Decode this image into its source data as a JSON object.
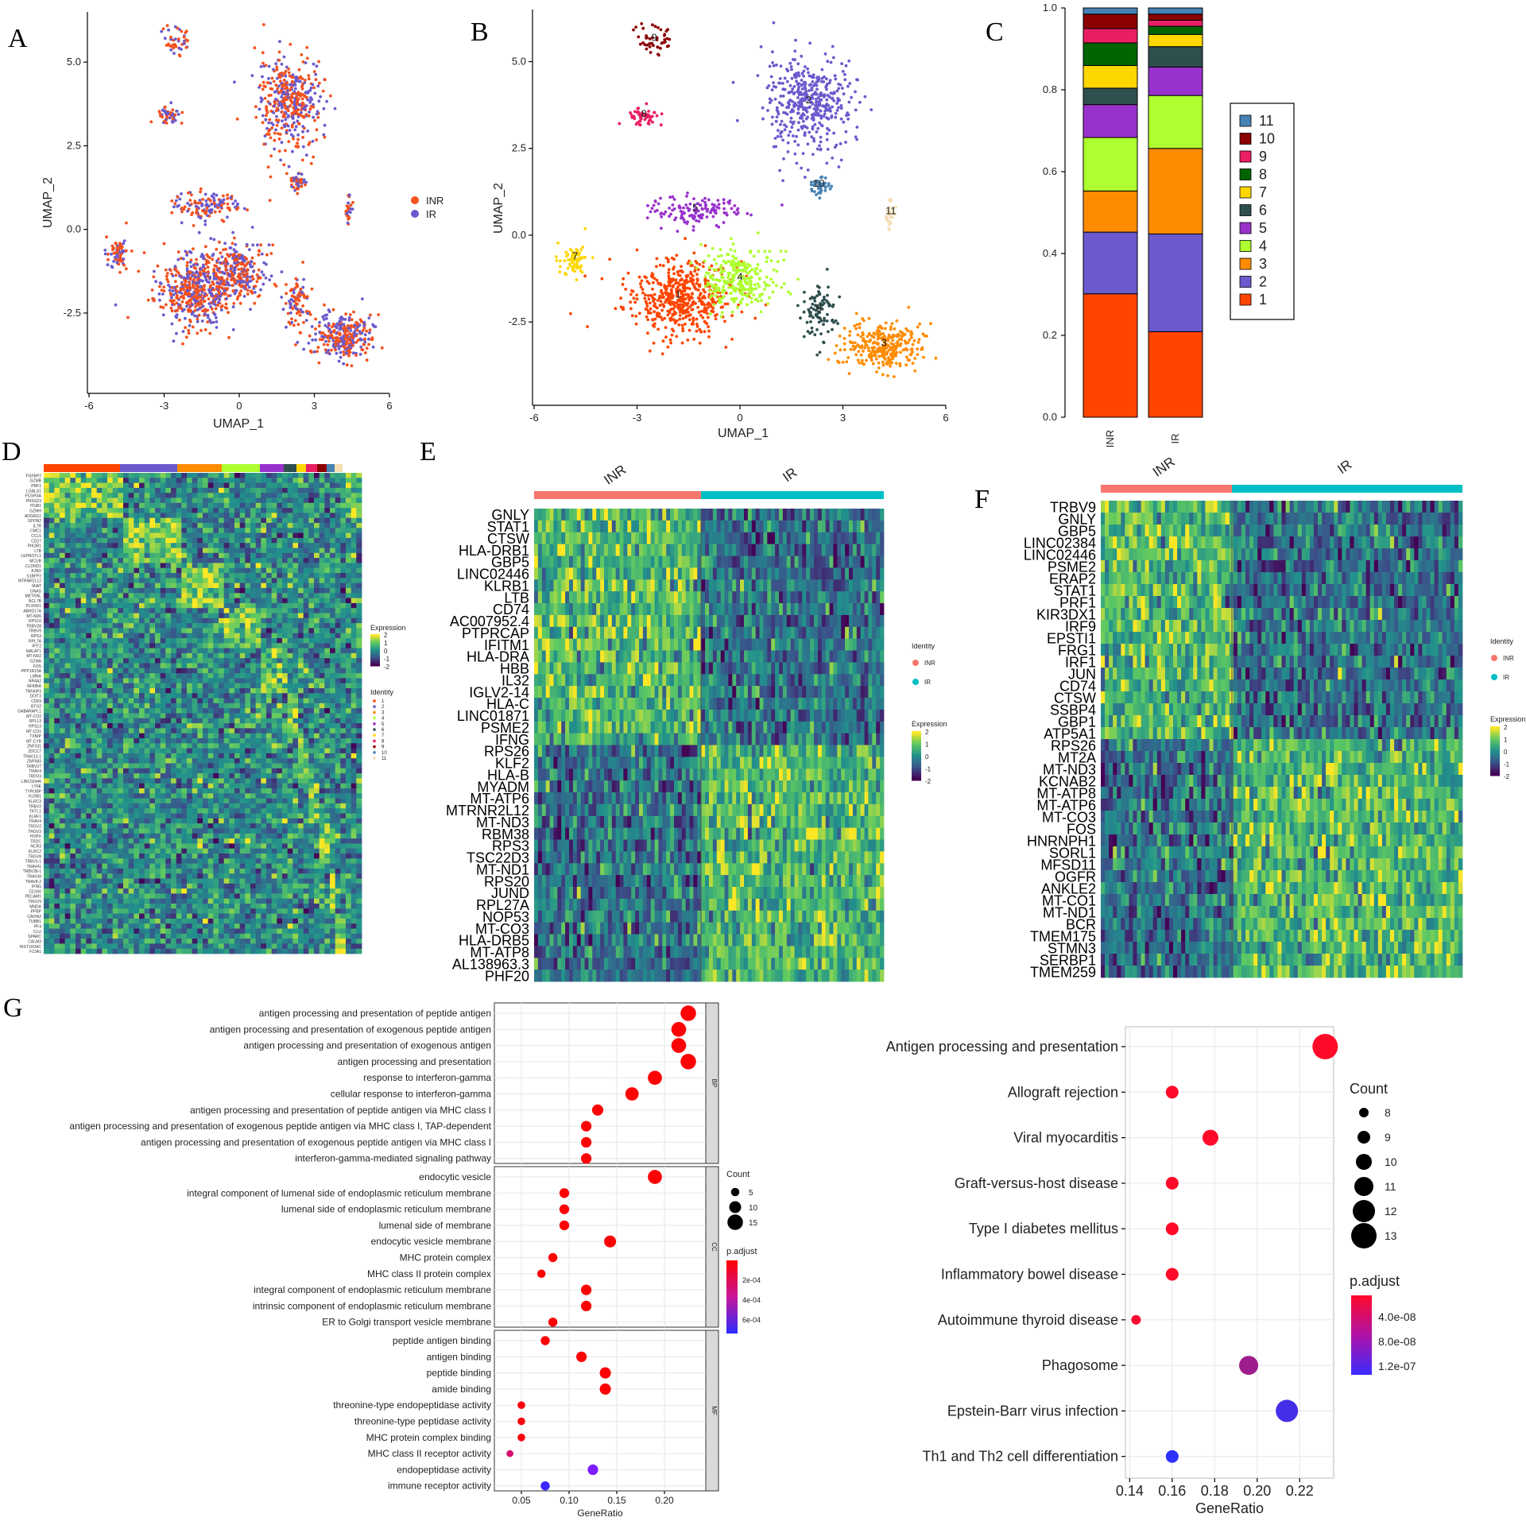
{
  "figure": {
    "panels": [
      "A",
      "B",
      "C",
      "D",
      "E",
      "F",
      "G"
    ]
  },
  "panelA": {
    "xlabel": "UMAP_1",
    "ylabel": "UMAP_2",
    "xticks": [
      "-6",
      "-3",
      "0",
      "3",
      "6"
    ],
    "yticks": [
      "5.0",
      "2.5",
      "0.0",
      "-2.5"
    ],
    "legend": [
      {
        "name": "INR",
        "color": "#f4511e"
      },
      {
        "name": "IR",
        "color": "#6a5acd"
      }
    ]
  },
  "panelB": {
    "xlabel": "UMAP_1",
    "ylabel": "UMAP_2",
    "xticks": [
      "-6",
      "-3",
      "0",
      "3",
      "6"
    ],
    "yticks": [
      "5.0",
      "2.5",
      "0.0",
      "-2.5"
    ],
    "clusters": [
      {
        "id": "1",
        "color": "#ff4500"
      },
      {
        "id": "2",
        "color": "#6a5acd"
      },
      {
        "id": "3",
        "color": "#ff8c00"
      },
      {
        "id": "4",
        "color": "#adff2f"
      },
      {
        "id": "5",
        "color": "#9932cc"
      },
      {
        "id": "6",
        "color": "#2f4f4f"
      },
      {
        "id": "7",
        "color": "#ffd700"
      },
      {
        "id": "8",
        "color": "#e91e63"
      },
      {
        "id": "9",
        "color": "#8b0000"
      },
      {
        "id": "10",
        "color": "#4682b4"
      },
      {
        "id": "11",
        "color": "#f5deb3"
      }
    ]
  },
  "chart_data": [
    {
      "type": "bar",
      "panel": "C",
      "stacked": true,
      "categories": [
        "INR",
        "IR"
      ],
      "yticks": [
        "0.0",
        "0.2",
        "0.4",
        "0.6",
        "0.8",
        "1.0"
      ],
      "ylim": [
        0,
        1
      ],
      "series": [
        {
          "name": "1",
          "color": "#ff4500",
          "values": [
            0.3,
            0.21
          ]
        },
        {
          "name": "2",
          "color": "#6a5acd",
          "values": [
            0.15,
            0.24
          ]
        },
        {
          "name": "3",
          "color": "#ff8c00",
          "values": [
            0.1,
            0.21
          ]
        },
        {
          "name": "4",
          "color": "#adff2f",
          "values": [
            0.13,
            0.13
          ]
        },
        {
          "name": "5",
          "color": "#9932cc",
          "values": [
            0.08,
            0.07
          ]
        },
        {
          "name": "6",
          "color": "#2f4f4f",
          "values": [
            0.04,
            0.05
          ]
        },
        {
          "name": "7",
          "color": "#ffd700",
          "values": [
            0.055,
            0.03
          ]
        },
        {
          "name": "8",
          "color": "#006400",
          "values": [
            0.055,
            0.02
          ]
        },
        {
          "name": "9",
          "color": "#e91e63",
          "values": [
            0.035,
            0.015
          ]
        },
        {
          "name": "10",
          "color": "#8b0000",
          "values": [
            0.035,
            0.015
          ]
        },
        {
          "name": "11",
          "color": "#4682b4",
          "values": [
            0.015,
            0.015
          ]
        }
      ]
    },
    {
      "type": "scatter",
      "panel": "G-left",
      "xlabel": "GeneRatio",
      "xticks": [
        "0.05",
        "0.10",
        "0.15",
        "0.20"
      ],
      "xlim": [
        0.03,
        0.235
      ],
      "groups": [
        {
          "name": "BP",
          "terms": [
            {
              "term": "antigen processing and presentation of peptide antigen",
              "x": 0.225,
              "count": 15,
              "padj": 1e-05
            },
            {
              "term": "antigen processing and presentation of exogenous peptide antigen",
              "x": 0.215,
              "count": 14,
              "padj": 1e-05
            },
            {
              "term": "antigen processing and presentation of exogenous antigen",
              "x": 0.215,
              "count": 14,
              "padj": 1e-05
            },
            {
              "term": "antigen processing and presentation",
              "x": 0.225,
              "count": 15,
              "padj": 1e-05
            },
            {
              "term": "response to interferon-gamma",
              "x": 0.19,
              "count": 13,
              "padj": 1e-05
            },
            {
              "term": "cellular response to interferon-gamma",
              "x": 0.166,
              "count": 12,
              "padj": 1e-05
            },
            {
              "term": "antigen processing and presentation of peptide antigen via MHC class I",
              "x": 0.13,
              "count": 9,
              "padj": 1e-05
            },
            {
              "term": "antigen processing and presentation of exogenous peptide antigen via MHC class I, TAP-dependent",
              "x": 0.118,
              "count": 8,
              "padj": 1e-05
            },
            {
              "term": "antigen processing and presentation of exogenous peptide antigen via MHC class I",
              "x": 0.118,
              "count": 8,
              "padj": 1e-05
            },
            {
              "term": "interferon-gamma-mediated signaling pathway",
              "x": 0.118,
              "count": 8,
              "padj": 1e-05
            }
          ]
        },
        {
          "name": "CC",
          "terms": [
            {
              "term": "endocytic vesicle",
              "x": 0.19,
              "count": 13,
              "padj": 1e-05
            },
            {
              "term": "integral component of lumenal side of endoplasmic reticulum membrane",
              "x": 0.095,
              "count": 7,
              "padj": 1e-05
            },
            {
              "term": "lumenal side of endoplasmic reticulum membrane",
              "x": 0.095,
              "count": 7,
              "padj": 1e-05
            },
            {
              "term": "lumenal side of membrane",
              "x": 0.095,
              "count": 7,
              "padj": 1e-05
            },
            {
              "term": "endocytic vesicle membrane",
              "x": 0.143,
              "count": 10,
              "padj": 1e-05
            },
            {
              "term": "MHC protein complex",
              "x": 0.083,
              "count": 6,
              "padj": 1e-05
            },
            {
              "term": "MHC class II protein complex",
              "x": 0.071,
              "count": 5,
              "padj": 1e-05
            },
            {
              "term": "integral component of endoplasmic reticulum membrane",
              "x": 0.118,
              "count": 8,
              "padj": 1e-05
            },
            {
              "term": "intrinsic component of endoplasmic reticulum membrane",
              "x": 0.118,
              "count": 8,
              "padj": 1e-05
            },
            {
              "term": "ER to Golgi transport vesicle membrane",
              "x": 0.083,
              "count": 6,
              "padj": 1e-05
            }
          ]
        },
        {
          "name": "MF",
          "terms": [
            {
              "term": "peptide antigen binding",
              "x": 0.075,
              "count": 6,
              "padj": 1e-05
            },
            {
              "term": "antigen binding",
              "x": 0.113,
              "count": 8,
              "padj": 1e-05
            },
            {
              "term": "peptide binding",
              "x": 0.138,
              "count": 9,
              "padj": 1e-05
            },
            {
              "term": "amide binding",
              "x": 0.138,
              "count": 9,
              "padj": 1e-05
            },
            {
              "term": "threonine-type endopeptidase activity",
              "x": 0.05,
              "count": 4,
              "padj": 3e-05
            },
            {
              "term": "threonine-type peptidase activity",
              "x": 0.05,
              "count": 4,
              "padj": 3e-05
            },
            {
              "term": "MHC protein complex binding",
              "x": 0.05,
              "count": 4,
              "padj": 3e-05
            },
            {
              "term": "MHC class II receptor activity",
              "x": 0.038,
              "count": 3,
              "padj": 0.00022
            },
            {
              "term": "endopeptidase activity",
              "x": 0.125,
              "count": 8,
              "padj": 0.00045
            },
            {
              "term": "immune receptor activity",
              "x": 0.075,
              "count": 6,
              "padj": 0.00058
            }
          ]
        }
      ],
      "size_legend": {
        "title": "Count",
        "values": [
          "5",
          "10",
          "15"
        ]
      },
      "color_legend": {
        "title": "p.adjust",
        "ticks": [
          "2e-04",
          "4e-04",
          "6e-04"
        ]
      }
    },
    {
      "type": "scatter",
      "panel": "G-right",
      "xlabel": "GeneRatio",
      "xticks": [
        "0.14",
        "0.16",
        "0.18",
        "0.20",
        "0.22"
      ],
      "xlim": [
        0.138,
        0.236
      ],
      "terms": [
        {
          "term": "Antigen processing and presentation",
          "x": 0.232,
          "count": 13,
          "padj": 5e-09
        },
        {
          "term": "Allograft rejection",
          "x": 0.16,
          "count": 9,
          "padj": 5e-09
        },
        {
          "term": "Viral myocarditis",
          "x": 0.178,
          "count": 10,
          "padj": 5e-09
        },
        {
          "term": "Graft-versus-host disease",
          "x": 0.16,
          "count": 9,
          "padj": 5e-09
        },
        {
          "term": "Type I diabetes mellitus",
          "x": 0.16,
          "count": 9,
          "padj": 5e-09
        },
        {
          "term": "Inflammatory bowel disease",
          "x": 0.16,
          "count": 9,
          "padj": 5e-09
        },
        {
          "term": "Autoimmune thyroid disease",
          "x": 0.143,
          "count": 8,
          "padj": 1e-08
        },
        {
          "term": "Phagosome",
          "x": 0.196,
          "count": 11,
          "padj": 7e-08
        },
        {
          "term": "Epstein-Barr virus infection",
          "x": 0.214,
          "count": 12,
          "padj": 1.3e-07
        },
        {
          "term": "Th1 and Th2 cell differentiation",
          "x": 0.16,
          "count": 9,
          "padj": 1.5e-07
        }
      ],
      "size_legend": {
        "title": "Count",
        "values": [
          "8",
          "9",
          "10",
          "11",
          "12",
          "13"
        ]
      },
      "color_legend": {
        "title": "p.adjust",
        "ticks": [
          "4.0e-08",
          "8.0e-08",
          "1.2e-07"
        ]
      }
    }
  ],
  "panelC": {
    "legend": [
      "11",
      "10",
      "9",
      "8",
      "7",
      "6",
      "5",
      "4",
      "3",
      "2",
      "1"
    ]
  },
  "panelD": {
    "genes": [
      "FGFBP2",
      "GZMB",
      "PRF1",
      "LGALS1",
      "FCGR3A",
      "PRSS23",
      "ITGB1",
      "GZMH",
      "ADGRG1",
      "SPON2",
      "IL7R",
      "CMC1",
      "CCL5",
      "CD27",
      "PIK3R1",
      "LTB",
      "LEPROTL1",
      "MCUB",
      "CLDND1",
      "JUND",
      "S1BFP2",
      "MTRNR2L12",
      "MIAT",
      "GNAS",
      "METRNL",
      "BCL7B",
      "PLXND1",
      "ABHD17A",
      "MT-ND6",
      "RPS10",
      "TRBV28",
      "TRBV9",
      "RPS3",
      "RPL7A",
      "IFIT2",
      "MALAT1",
      "MT-ND2",
      "GZMA",
      "FOS",
      "PPP1R15A",
      "LMNA",
      "NR4A2",
      "NFKBIA",
      "TNFAIP3",
      "DDIT3",
      "CD69",
      "BTG2",
      "GABARAPL1",
      "MT-CO2",
      "RPL13",
      "RPS13",
      "MT-CO1",
      "TXNIP",
      "MT-CYB",
      "ZNF331",
      "ZDCC7",
      "TRAV12-1",
      "ZNF683",
      "TRBV27",
      "TRAV4",
      "TRDV3",
      "LINC02446",
      "LY6E",
      "TYROBP",
      "KLRB1",
      "KLRC3",
      "TRBV2",
      "TKTL1",
      "KLRF1",
      "TRAV4",
      "TRGV2",
      "TRGV3",
      "HOPX",
      "TRDC",
      "NCR3",
      "KLRC2",
      "TRGV8",
      "TRBV3-1",
      "TRAV41",
      "TRBV28-1",
      "TRAV38",
      "TRAV8-2",
      "IFNG",
      "CD160",
      "PECAM1",
      "TRGV9",
      "MNDA",
      "PPBP",
      "CAVIN2",
      "TUBB1",
      "PF4",
      "CLU",
      "SPARC",
      "CALM3",
      "HIST1H2AC",
      "F13A1"
    ],
    "expression_legend": {
      "title": "Expression",
      "ticks": [
        "2",
        "1",
        "0",
        "-1",
        "-2"
      ]
    },
    "identity_legend": {
      "title": "Identity",
      "items": [
        "1",
        "2",
        "3",
        "4",
        "5",
        "6",
        "7",
        "8",
        "9",
        "10",
        "11"
      ]
    }
  },
  "panelE": {
    "groups": [
      "INR",
      "IR"
    ],
    "genes": [
      "GNLY",
      "STAT1",
      "CTSW",
      "HLA-DRB1",
      "GBP5",
      "LINC02446",
      "KLRB1",
      "LTB",
      "CD74",
      "AC007952.4",
      "PTPRCAP",
      "IFITM1",
      "HLA-DRA",
      "HBB",
      "IL32",
      "IGLV2-14",
      "HLA-C",
      "LINC01871",
      "PSME2",
      "IFNG",
      "RPS26",
      "KLF2",
      "HLA-B",
      "MYADM",
      "MT-ATP6",
      "MTRNR2L12",
      "MT-ND3",
      "RBM38",
      "RPS3",
      "TSC22D3",
      "MT-ND1",
      "RPS20",
      "JUND",
      "RPL27A",
      "NOP53",
      "MT-CO3",
      "HLA-DRB5",
      "MT-ATP8",
      "AL138963.3",
      "PHF20"
    ],
    "identity_legend": {
      "title": "Identity",
      "items": [
        {
          "name": "INR",
          "color": "#f8766d"
        },
        {
          "name": "IR",
          "color": "#00bfc4"
        }
      ]
    },
    "expression_legend": {
      "title": "Expression",
      "ticks": [
        "2",
        "1",
        "0",
        "-1",
        "-2"
      ]
    }
  },
  "panelF": {
    "groups": [
      "INR",
      "IR"
    ],
    "genes": [
      "TRBV9",
      "GNLY",
      "GBP5",
      "LINC02384",
      "LINC02446",
      "PSME2",
      "ERAP2",
      "STAT1",
      "PRF1",
      "KIR3DX1",
      "IRF9",
      "EPSTI1",
      "FRG1",
      "IRF1",
      "JUN",
      "CD74",
      "CTSW",
      "SSBP4",
      "GBP1",
      "ATP5A1",
      "RPS26",
      "MT2A",
      "MT-ND3",
      "KCNAB2",
      "MT-ATP8",
      "MT-ATP6",
      "MT-CO3",
      "FOS",
      "HNRNPH1",
      "SORL1",
      "MFSD11",
      "OGFR",
      "ANKLE2",
      "MT-CO1",
      "MT-ND1",
      "BCR",
      "TMEM175",
      "STMN3",
      "SERBP1",
      "TMEM259"
    ],
    "identity_legend": {
      "title": "Identity",
      "items": [
        {
          "name": "INR",
          "color": "#f8766d"
        },
        {
          "name": "IR",
          "color": "#00bfc4"
        }
      ]
    },
    "expression_legend": {
      "title": "Expression",
      "ticks": [
        "2",
        "1",
        "0",
        "-1",
        "-2"
      ]
    }
  }
}
